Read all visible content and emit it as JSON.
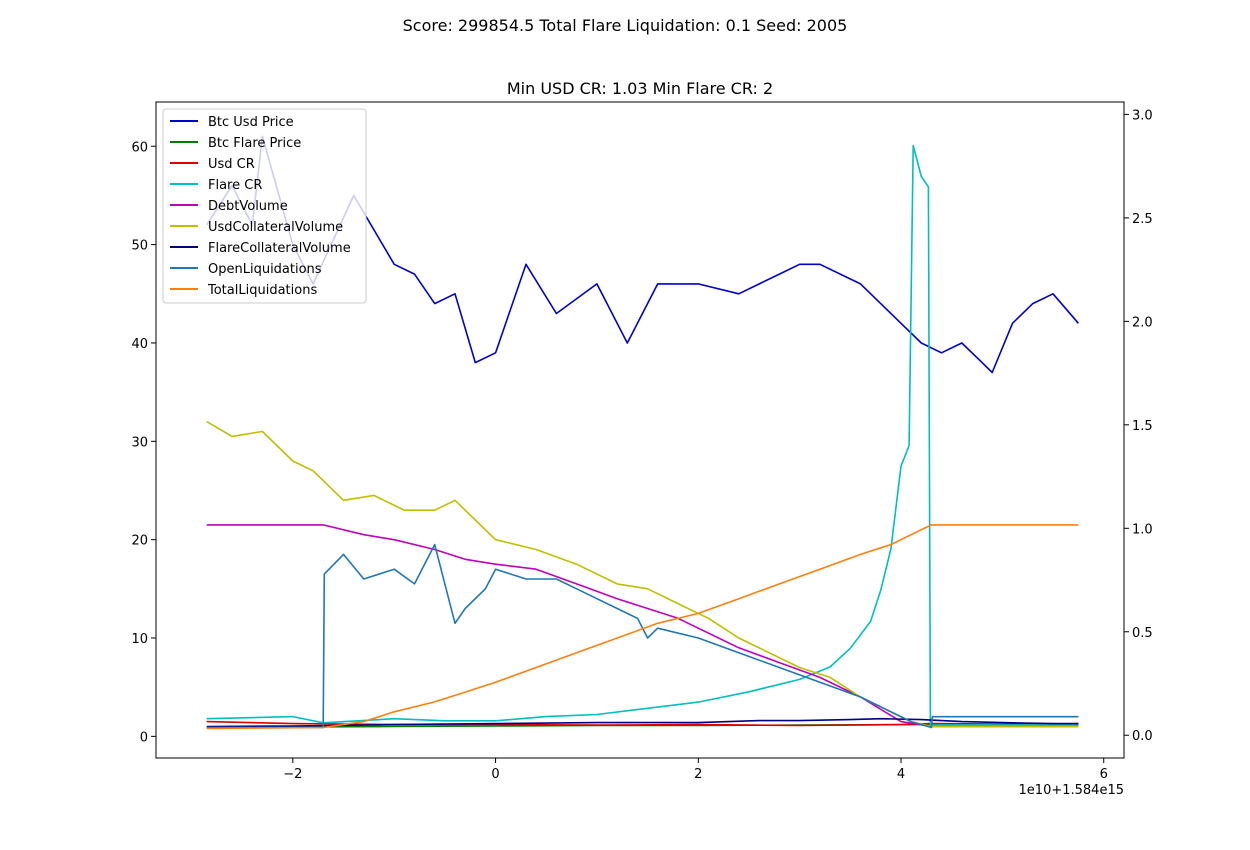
{
  "suptitle": "Score: 299854.5 Total Flare Liquidation: 0.1 Seed: 2005",
  "chart_data": {
    "type": "line",
    "title": "Min USD CR: 1.03 Min Flare CR: 2",
    "x_offset_label": "1e10+1.584e15",
    "xlim": [
      -3.35,
      6.2
    ],
    "ylim_left": [
      -2.2,
      64.5
    ],
    "ylim_right": [
      -0.11,
      3.06
    ],
    "x_ticks": [
      -2,
      0,
      2,
      4,
      6
    ],
    "x_tick_labels": [
      "−2",
      "0",
      "2",
      "4",
      "6"
    ],
    "y_left_ticks": [
      0,
      10,
      20,
      30,
      40,
      50,
      60
    ],
    "y_left_tick_labels": [
      "0",
      "10",
      "20",
      "30",
      "40",
      "50",
      "60"
    ],
    "y_right_ticks": [
      0,
      0.5,
      1,
      1.5,
      2,
      2.5,
      3
    ],
    "y_right_tick_labels": [
      "0.0",
      "0.5",
      "1.0",
      "1.5",
      "2.0",
      "2.5",
      "3.0"
    ],
    "legend_position": "upper-left",
    "series": [
      {
        "name": "Btc Usd Price",
        "color": "#0000cc",
        "axis": "left",
        "x": [
          -2.85,
          -2.6,
          -2.4,
          -2.3,
          -2.0,
          -1.8,
          -1.4,
          -1.0,
          -0.8,
          -0.6,
          -0.4,
          -0.2,
          0.0,
          0.3,
          0.6,
          1.0,
          1.3,
          1.6,
          2.0,
          2.4,
          2.8,
          3.0,
          3.2,
          3.6,
          3.8,
          4.0,
          4.2,
          4.4,
          4.6,
          4.8,
          4.9,
          5.1,
          5.3,
          5.5,
          5.75
        ],
        "y": [
          52,
          56,
          52,
          61,
          50,
          46,
          55,
          48,
          47,
          44,
          45,
          38,
          39,
          48,
          43,
          46,
          40,
          46,
          46,
          45,
          47,
          48,
          48,
          46,
          44,
          42,
          40,
          39,
          40,
          38,
          37,
          42,
          44,
          45,
          42
        ]
      },
      {
        "name": "Btc Flare Price",
        "color": "#008000",
        "axis": "left",
        "x": [
          -2.85,
          -2.0,
          -1.0,
          0.0,
          1.0,
          2.0,
          3.0,
          4.0,
          4.3,
          5.0,
          5.75
        ],
        "y": [
          0.9,
          0.95,
          1.0,
          1.05,
          1.1,
          1.1,
          1.15,
          1.2,
          1.2,
          1.2,
          1.25
        ]
      },
      {
        "name": "Usd CR",
        "color": "#dd0000",
        "axis": "left",
        "x": [
          -2.85,
          -2.0,
          -1.0,
          0.0,
          1.0,
          2.0,
          3.0,
          4.0,
          4.3,
          5.0,
          5.75
        ],
        "y": [
          1.5,
          1.3,
          1.2,
          1.2,
          1.15,
          1.2,
          1.1,
          1.2,
          1.3,
          1.25,
          1.2
        ]
      },
      {
        "name": "Flare CR",
        "color": "#00bfbf",
        "axis": "right",
        "x": [
          -2.85,
          -2.0,
          -1.7,
          -1.0,
          -0.5,
          0.0,
          0.5,
          1.0,
          1.5,
          2.0,
          2.5,
          3.0,
          3.3,
          3.5,
          3.7,
          3.8,
          3.9,
          4.0,
          4.08,
          4.12,
          4.2,
          4.27,
          4.29,
          5.0,
          5.75
        ],
        "y": [
          0.08,
          0.09,
          0.06,
          0.08,
          0.07,
          0.07,
          0.09,
          0.1,
          0.13,
          0.16,
          0.21,
          0.27,
          0.33,
          0.42,
          0.55,
          0.7,
          0.9,
          1.3,
          1.4,
          2.85,
          2.7,
          2.65,
          0.05,
          0.05,
          0.05
        ]
      },
      {
        "name": "DebtVolume",
        "color": "#bf00bf",
        "axis": "left",
        "x": [
          -2.85,
          -1.7,
          -1.3,
          -1.0,
          -0.6,
          -0.3,
          0.0,
          0.4,
          0.8,
          1.2,
          1.5,
          1.8,
          2.0,
          2.4,
          2.8,
          3.2,
          3.6,
          4.0,
          4.3,
          5.0,
          5.75
        ],
        "y": [
          21.5,
          21.5,
          20.5,
          20,
          19,
          18,
          17.5,
          17,
          15.5,
          14,
          13,
          12,
          11,
          9,
          7.5,
          6,
          4,
          1.5,
          1.0,
          1.0,
          1.0
        ]
      },
      {
        "name": "UsdCollateralVolume",
        "color": "#bfbf00",
        "axis": "left",
        "x": [
          -2.85,
          -2.6,
          -2.3,
          -2.0,
          -1.8,
          -1.5,
          -1.2,
          -0.9,
          -0.6,
          -0.4,
          -0.2,
          0.0,
          0.4,
          0.8,
          1.2,
          1.5,
          1.8,
          2.1,
          2.4,
          2.7,
          3.0,
          3.3,
          3.6,
          3.9,
          4.1,
          4.3,
          5.0,
          5.75
        ],
        "y": [
          32,
          30.5,
          31,
          28,
          27,
          24,
          24.5,
          23,
          23,
          24,
          22,
          20,
          19,
          17.5,
          15.5,
          15,
          13.5,
          12,
          10,
          8.5,
          7,
          6,
          4,
          2.5,
          1.5,
          1.0,
          1.0,
          1.0
        ]
      },
      {
        "name": "FlareCollateralVolume",
        "color": "#00008b",
        "axis": "left",
        "x": [
          -2.85,
          -2.0,
          -1.0,
          0.0,
          1.0,
          2.0,
          2.6,
          3.0,
          3.5,
          3.8,
          4.2,
          4.6,
          5.0,
          5.5,
          5.75
        ],
        "y": [
          1.0,
          1.05,
          1.2,
          1.3,
          1.4,
          1.4,
          1.6,
          1.6,
          1.7,
          1.8,
          1.7,
          1.5,
          1.4,
          1.3,
          1.3
        ]
      },
      {
        "name": "OpenLiquidations",
        "color": "#1f77b4",
        "axis": "left",
        "x": [
          -2.85,
          -1.7,
          -1.69,
          -1.5,
          -1.3,
          -1.0,
          -0.8,
          -0.6,
          -0.4,
          -0.3,
          -0.1,
          0.0,
          0.3,
          0.6,
          0.8,
          1.0,
          1.2,
          1.4,
          1.5,
          1.6,
          2.0,
          2.4,
          2.8,
          3.2,
          3.6,
          3.9,
          4.1,
          4.3,
          4.31,
          5.0,
          5.75
        ],
        "y": [
          0.9,
          0.9,
          16.5,
          18.5,
          16,
          17,
          15.5,
          19.5,
          11.5,
          13,
          15,
          17,
          16,
          16,
          15,
          14,
          13,
          12,
          10,
          11,
          10,
          8.5,
          7,
          5.5,
          4,
          2.5,
          1.5,
          0.9,
          2.0,
          2.0,
          2.0
        ]
      },
      {
        "name": "TotalLiquidations",
        "color": "#ff7f0e",
        "axis": "left",
        "x": [
          -2.85,
          -1.7,
          -1.3,
          -1.0,
          -0.6,
          -0.3,
          0.0,
          0.4,
          0.8,
          1.2,
          1.6,
          2.0,
          2.4,
          2.8,
          3.2,
          3.6,
          3.9,
          4.1,
          4.3,
          5.0,
          5.75
        ],
        "y": [
          0.8,
          0.9,
          1.5,
          2.5,
          3.5,
          4.5,
          5.5,
          7,
          8.5,
          10,
          11.5,
          12.5,
          14,
          15.5,
          17,
          18.5,
          19.5,
          20.5,
          21.5,
          21.5,
          21.5
        ]
      }
    ]
  }
}
